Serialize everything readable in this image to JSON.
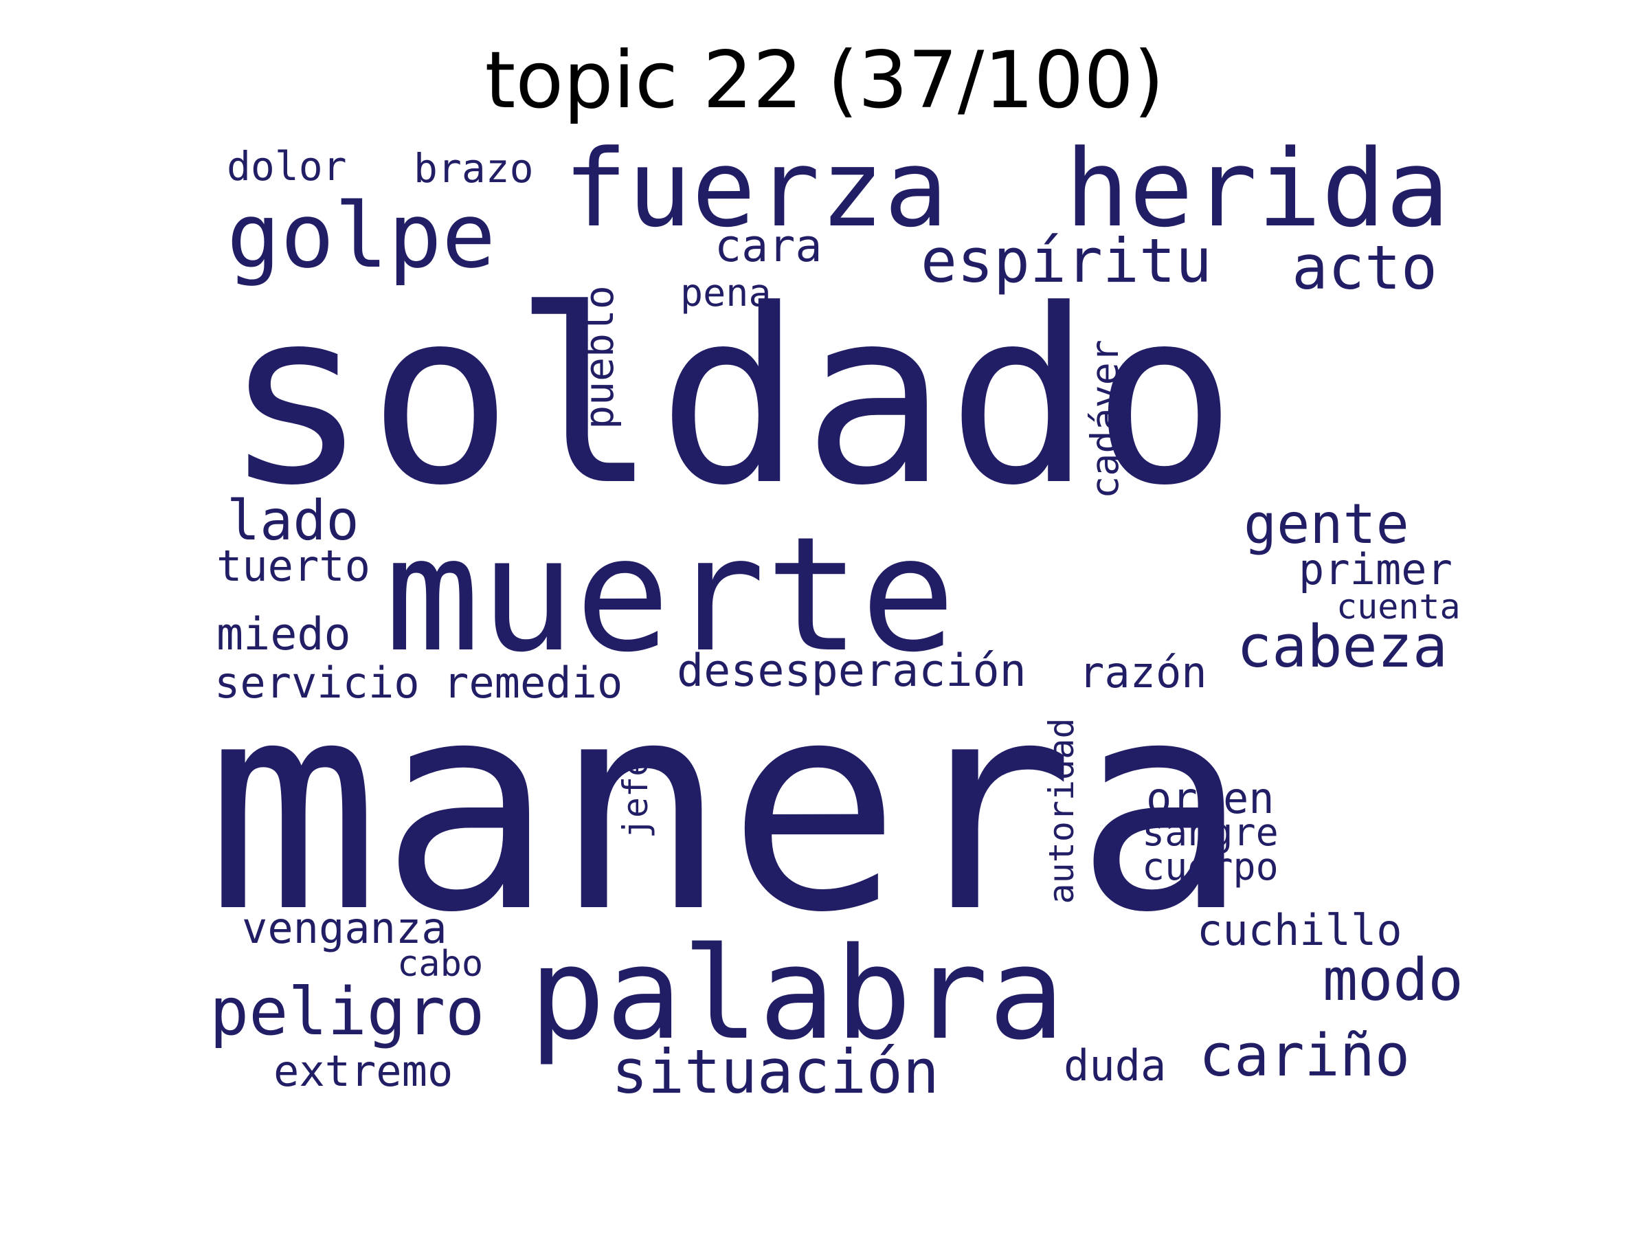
{
  "title": "topic 22 (37/100)",
  "word_color": "#211e66",
  "background_color": "#ffffff",
  "words": [
    {
      "text": "manera"
    },
    {
      "text": "soldado"
    },
    {
      "text": "muerte"
    },
    {
      "text": "palabra"
    },
    {
      "text": "fuerza"
    },
    {
      "text": "herida"
    },
    {
      "text": "golpe"
    },
    {
      "text": "espíritu"
    },
    {
      "text": "acto"
    },
    {
      "text": "peligro"
    },
    {
      "text": "situación"
    },
    {
      "text": "cabeza"
    },
    {
      "text": "cariño"
    },
    {
      "text": "modo"
    },
    {
      "text": "gente"
    },
    {
      "text": "lado"
    },
    {
      "text": "desesperación"
    },
    {
      "text": "orden"
    },
    {
      "text": "dolor"
    },
    {
      "text": "brazo"
    },
    {
      "text": "cara"
    },
    {
      "text": "pena"
    },
    {
      "text": "pueblo"
    },
    {
      "text": "cadáver"
    },
    {
      "text": "tuerto"
    },
    {
      "text": "primer"
    },
    {
      "text": "cuenta"
    },
    {
      "text": "miedo"
    },
    {
      "text": "servicio"
    },
    {
      "text": "remedio"
    },
    {
      "text": "razón"
    },
    {
      "text": "autoridad"
    },
    {
      "text": "jefe"
    },
    {
      "text": "sangre"
    },
    {
      "text": "cuerpo"
    },
    {
      "text": "venganza"
    },
    {
      "text": "cuchillo"
    },
    {
      "text": "cabo"
    },
    {
      "text": "extremo"
    },
    {
      "text": "duda"
    }
  ]
}
